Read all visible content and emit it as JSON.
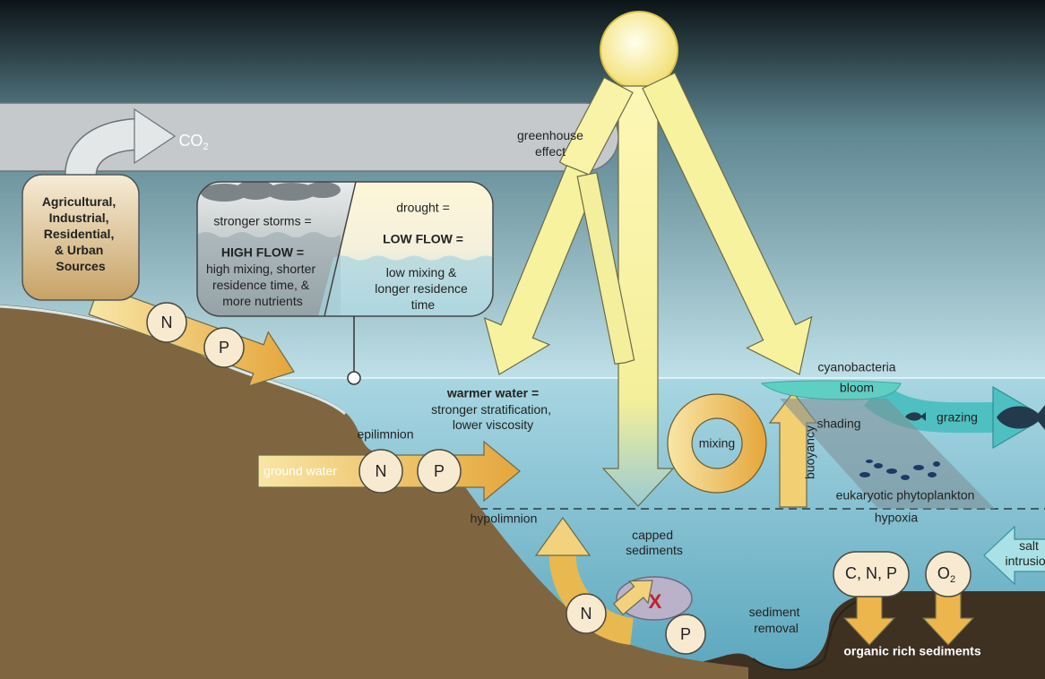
{
  "labels": {
    "co2": {
      "text": "CO",
      "sub": "2"
    },
    "greenhouse": [
      "greenhouse",
      "effect"
    ],
    "sources": [
      "Agricultural,",
      "Industrial,",
      "Residential,",
      "& Urban",
      "Sources"
    ],
    "high_flow": {
      "cause": "stronger storms =",
      "title": "HIGH FLOW =",
      "effects": [
        "high mixing, shorter",
        "residence time, &",
        "more nutrients"
      ]
    },
    "low_flow": {
      "cause": "drought =",
      "title": "LOW FLOW =",
      "effects": [
        "low mixing &",
        "longer residence",
        "time"
      ]
    },
    "warmer_water": {
      "title": "warmer water =",
      "effects": [
        "stronger stratification,",
        "lower viscosity"
      ]
    },
    "epilimnion": "epilimnion",
    "ground_water": "ground water",
    "hypolimnion": "hypolimnion",
    "capped_sediments": [
      "capped",
      "sediments"
    ],
    "blocked": "X",
    "sediment_removal": [
      "sediment",
      "removal"
    ],
    "mixing": "mixing",
    "buoyancy": "buoyancy",
    "shading": "shading",
    "cyanobacteria": "cyanobacteria",
    "bloom": "bloom",
    "grazing": "grazing",
    "phytoplankton": "eukaryotic phytoplankton",
    "hypoxia": "hypoxia",
    "cnp": "C, N, P",
    "o2": {
      "text": "O",
      "sub": "2"
    },
    "salt_intrusion": [
      "salt",
      "intrusion"
    ],
    "organic_sediments": "organic rich sediments",
    "nutrients": {
      "runoff": [
        "N",
        "P"
      ],
      "ground_water": [
        "N",
        "P"
      ],
      "sediment": [
        "N",
        "P"
      ]
    }
  }
}
